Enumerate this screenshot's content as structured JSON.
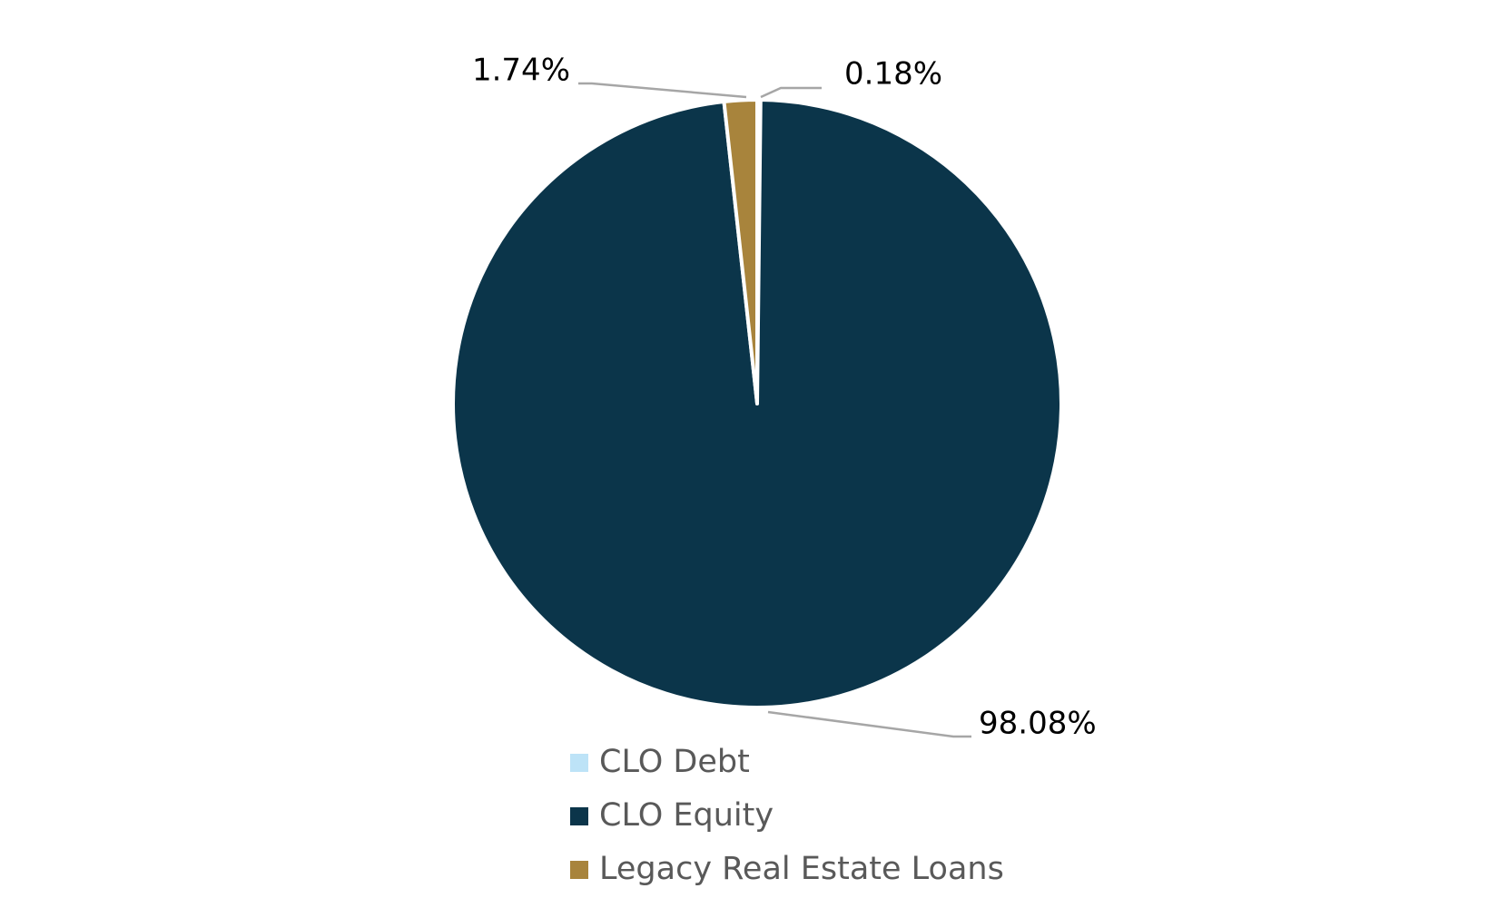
{
  "chart_data": {
    "type": "pie",
    "categories": [
      "CLO Debt",
      "CLO Equity",
      "Legacy Real Estate Loans"
    ],
    "values": [
      0.18,
      98.08,
      1.74
    ],
    "value_labels": [
      "0.18%",
      "98.08%",
      "1.74%"
    ],
    "colors": [
      "#bde3f7",
      "#0b354a",
      "#a8843c"
    ],
    "legend": "bottom"
  }
}
